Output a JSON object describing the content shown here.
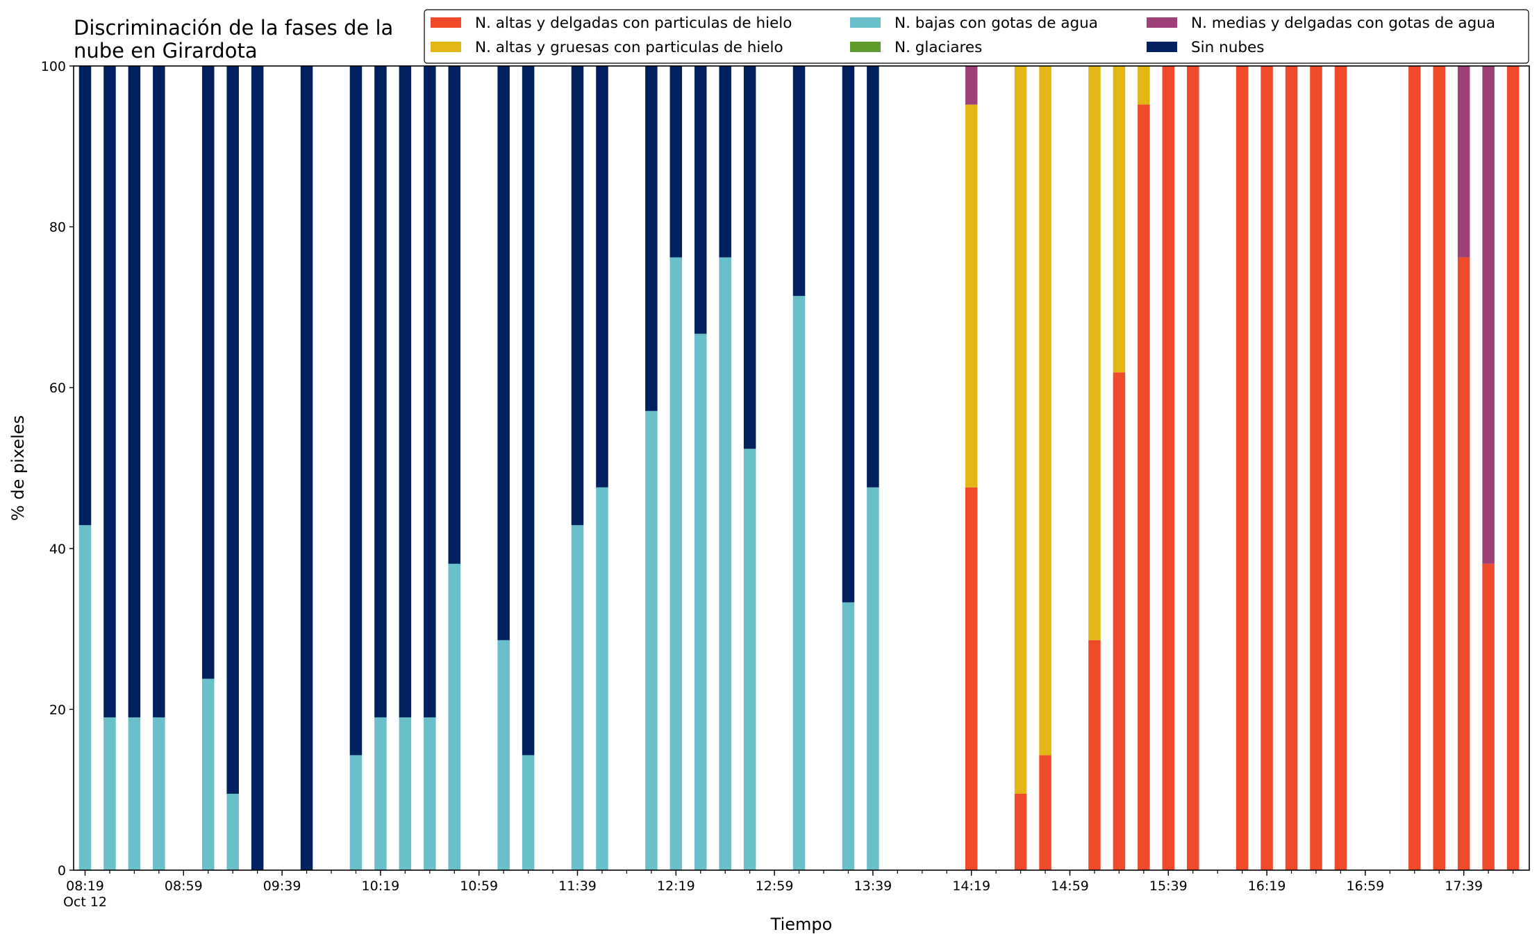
{
  "chart_data": {
    "type": "bar",
    "stacked": true,
    "title_lines": [
      "Discriminación de la fases de la",
      "nube en Girardota"
    ],
    "xlabel": "Tiempo",
    "ylabel": "% de pixeles",
    "ylim": [
      0,
      100
    ],
    "yticks": [
      0,
      20,
      40,
      60,
      80,
      100
    ],
    "x_start": "08:19",
    "x_end": "17:59",
    "x_step_minutes": 10,
    "xtick_labels": [
      "08:19",
      "08:59",
      "09:39",
      "10:19",
      "10:59",
      "11:39",
      "12:19",
      "12:59",
      "13:39",
      "14:19",
      "14:59",
      "15:39",
      "16:19",
      "16:59",
      "17:39"
    ],
    "xtick_sublabel": "Oct 12",
    "grid": false,
    "legend_position": "top-right",
    "x": [
      "08:19",
      "08:29",
      "08:39",
      "08:49",
      "08:59",
      "09:09",
      "09:19",
      "09:29",
      "09:39",
      "09:49",
      "09:59",
      "10:09",
      "10:19",
      "10:29",
      "10:39",
      "10:49",
      "10:59",
      "11:09",
      "11:19",
      "11:29",
      "11:39",
      "11:49",
      "11:59",
      "12:09",
      "12:19",
      "12:29",
      "12:39",
      "12:49",
      "12:59",
      "13:09",
      "13:19",
      "13:29",
      "13:39",
      "13:49",
      "13:59",
      "14:09",
      "14:19",
      "14:29",
      "14:39",
      "14:49",
      "14:59",
      "15:09",
      "15:19",
      "15:29",
      "15:39",
      "15:49",
      "15:59",
      "16:09",
      "16:19",
      "16:29",
      "16:39",
      "16:49",
      "16:59",
      "17:09",
      "17:19",
      "17:29",
      "17:39",
      "17:49",
      "17:59"
    ],
    "series": [
      {
        "name": "N. altas y delgadas con particulas de hielo",
        "color": "#ef4b2b",
        "values": [
          0,
          0,
          0,
          0,
          0,
          0,
          0,
          0,
          0,
          0,
          0,
          0,
          0,
          0,
          0,
          0,
          0,
          0,
          0,
          0,
          0,
          0,
          0,
          0,
          0,
          0,
          0,
          0,
          0,
          0,
          0,
          0,
          0,
          0,
          0,
          0,
          47.6,
          0,
          9.5,
          14.3,
          0,
          28.6,
          61.9,
          95.2,
          100,
          100,
          0,
          100,
          100,
          100,
          100,
          100,
          0,
          0,
          100,
          100,
          76.2,
          38.1,
          100
        ]
      },
      {
        "name": "N. altas y gruesas con particulas de hielo",
        "color": "#e3b615",
        "values": [
          0,
          0,
          0,
          0,
          0,
          0,
          0,
          0,
          0,
          0,
          0,
          0,
          0,
          0,
          0,
          0,
          0,
          0,
          0,
          0,
          0,
          0,
          0,
          0,
          0,
          0,
          0,
          0,
          0,
          0,
          0,
          0,
          0,
          0,
          0,
          0,
          47.6,
          0,
          90.5,
          85.7,
          0,
          71.4,
          38.1,
          4.8,
          0,
          0,
          0,
          0,
          0,
          0,
          0,
          0,
          0,
          0,
          0,
          0,
          0,
          0,
          0
        ]
      },
      {
        "name": "N. bajas con gotas de agua",
        "color": "#69bfca",
        "values": [
          42.9,
          19.0,
          19.0,
          19.0,
          0,
          23.8,
          9.5,
          0,
          0,
          0,
          0,
          14.3,
          19.0,
          19.0,
          19.0,
          38.1,
          0,
          28.6,
          14.3,
          0,
          42.9,
          47.6,
          0,
          57.1,
          76.2,
          66.7,
          76.2,
          52.4,
          0,
          71.4,
          0,
          33.3,
          47.6,
          0,
          0,
          0,
          0,
          0,
          0,
          0,
          0,
          0,
          0,
          0,
          0,
          0,
          0,
          0,
          0,
          0,
          0,
          0,
          0,
          0,
          0,
          0,
          0,
          0,
          0
        ]
      },
      {
        "name": "N. glaciares",
        "color": "#5e9c2d",
        "values": [
          0,
          0,
          0,
          0,
          0,
          0,
          0,
          0,
          0,
          0,
          0,
          0,
          0,
          0,
          0,
          0,
          0,
          0,
          0,
          0,
          0,
          0,
          0,
          0,
          0,
          0,
          0,
          0,
          0,
          0,
          0,
          0,
          0,
          0,
          0,
          0,
          0,
          0,
          0,
          0,
          0,
          0,
          0,
          0,
          0,
          0,
          0,
          0,
          0,
          0,
          0,
          0,
          0,
          0,
          0,
          0,
          0,
          0,
          0
        ]
      },
      {
        "name": "N. medias y delgadas con gotas de agua",
        "color": "#9e4178",
        "values": [
          0,
          0,
          0,
          0,
          0,
          0,
          0,
          0,
          0,
          0,
          0,
          0,
          0,
          0,
          0,
          0,
          0,
          0,
          0,
          0,
          0,
          0,
          0,
          0,
          0,
          0,
          0,
          0,
          0,
          0,
          0,
          0,
          0,
          0,
          0,
          0,
          4.8,
          0,
          0,
          0,
          0,
          0,
          0,
          0,
          0,
          0,
          0,
          0,
          0,
          0,
          0,
          0,
          0,
          0,
          0,
          0,
          23.8,
          61.9,
          0
        ]
      },
      {
        "name": "Sin nubes",
        "color": "#00205f",
        "values": [
          57.1,
          81.0,
          81.0,
          81.0,
          0,
          76.2,
          90.5,
          100,
          0,
          100,
          0,
          85.7,
          81.0,
          81.0,
          81.0,
          61.9,
          0,
          71.4,
          85.7,
          0,
          57.1,
          52.4,
          0,
          42.9,
          23.8,
          33.3,
          23.8,
          47.6,
          0,
          28.6,
          0,
          66.7,
          52.4,
          0,
          0,
          0,
          0,
          0,
          0,
          0,
          0,
          0,
          0,
          0,
          0,
          0,
          0,
          0,
          0,
          0,
          0,
          0,
          0,
          0,
          0,
          0,
          0,
          0,
          0
        ]
      }
    ]
  }
}
